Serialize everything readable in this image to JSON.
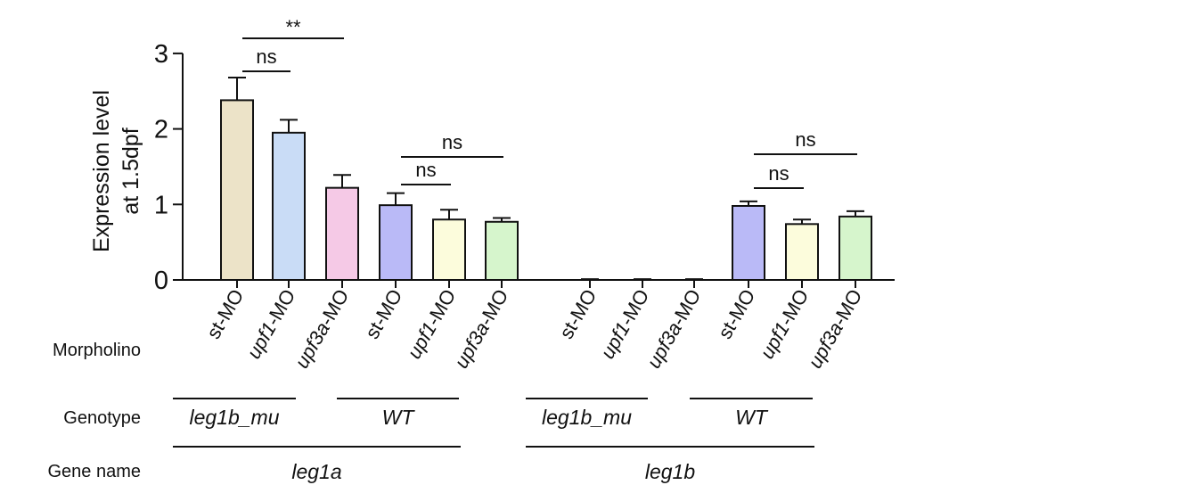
{
  "chart_data": {
    "type": "bar",
    "ylabel_lines": [
      "Expression level",
      "at 1.5dpf"
    ],
    "ylim": [
      0,
      3
    ],
    "yticks": [
      "0",
      "1",
      "2",
      "3"
    ],
    "grid": false,
    "bars": [
      {
        "category": "st-MO",
        "prefix": "st",
        "suffix": "-MO",
        "italic_prefix": false,
        "value": 2.38,
        "error": 0.3,
        "color": "#ece3c8"
      },
      {
        "category": "upf1-MO",
        "prefix": "upf1",
        "suffix": "-MO",
        "italic_prefix": true,
        "value": 1.95,
        "error": 0.17,
        "color": "#c9dcf6"
      },
      {
        "category": "upf3a-MO",
        "prefix": "upf3a",
        "suffix": "-MO",
        "italic_prefix": true,
        "value": 1.22,
        "error": 0.17,
        "color": "#f5c9e6"
      },
      {
        "category": "st-MO",
        "prefix": "st",
        "suffix": "-MO",
        "italic_prefix": false,
        "value": 0.99,
        "error": 0.16,
        "color": "#babaf7"
      },
      {
        "category": "upf1-MO",
        "prefix": "upf1",
        "suffix": "-MO",
        "italic_prefix": true,
        "value": 0.8,
        "error": 0.13,
        "color": "#fcfcdc"
      },
      {
        "category": "upf3a-MO",
        "prefix": "upf3a",
        "suffix": "-MO",
        "italic_prefix": true,
        "value": 0.77,
        "error": 0.05,
        "color": "#d6f5cc"
      },
      {
        "category": "st-MO",
        "prefix": "st",
        "suffix": "-MO",
        "italic_prefix": false,
        "value": 0.0,
        "error": 0.01,
        "color": "#ece3c8"
      },
      {
        "category": "upf1-MO",
        "prefix": "upf1",
        "suffix": "-MO",
        "italic_prefix": true,
        "value": 0.0,
        "error": 0.01,
        "color": "#c9dcf6"
      },
      {
        "category": "upf3a-MO",
        "prefix": "upf3a",
        "suffix": "-MO",
        "italic_prefix": true,
        "value": 0.0,
        "error": 0.01,
        "color": "#f5c9e6"
      },
      {
        "category": "st-MO",
        "prefix": "st",
        "suffix": "-MO",
        "italic_prefix": false,
        "value": 0.98,
        "error": 0.06,
        "color": "#babaf7"
      },
      {
        "category": "upf1-MO",
        "prefix": "upf1",
        "suffix": "-MO",
        "italic_prefix": true,
        "value": 0.74,
        "error": 0.06,
        "color": "#fcfcdc"
      },
      {
        "category": "upf3a-MO",
        "prefix": "upf3a",
        "suffix": "-MO",
        "italic_prefix": true,
        "value": 0.84,
        "error": 0.07,
        "color": "#d6f5cc"
      }
    ],
    "significance": [
      {
        "from": 0,
        "to": 1,
        "label": "ns"
      },
      {
        "from": 0,
        "to": 2,
        "label": "**"
      },
      {
        "from": 3,
        "to": 4,
        "label": "ns"
      },
      {
        "from": 3,
        "to": 5,
        "label": "ns"
      },
      {
        "from": 9,
        "to": 10,
        "label": "ns"
      },
      {
        "from": 9,
        "to": 11,
        "label": "ns"
      }
    ],
    "row_labels": {
      "morpholino": "Morpholino",
      "genotype": "Genotype",
      "gene_name": "Gene name"
    },
    "genotype_groups": [
      {
        "label": "leg1b_mu",
        "from": 0,
        "to": 2
      },
      {
        "label": "WT",
        "from": 3,
        "to": 5
      },
      {
        "label": "leg1b_mu",
        "from": 6,
        "to": 8
      },
      {
        "label": "WT",
        "from": 9,
        "to": 11
      }
    ],
    "gene_groups": [
      {
        "label": "leg1a",
        "from": 0,
        "to": 5
      },
      {
        "label": "leg1b",
        "from": 6,
        "to": 11
      }
    ]
  }
}
